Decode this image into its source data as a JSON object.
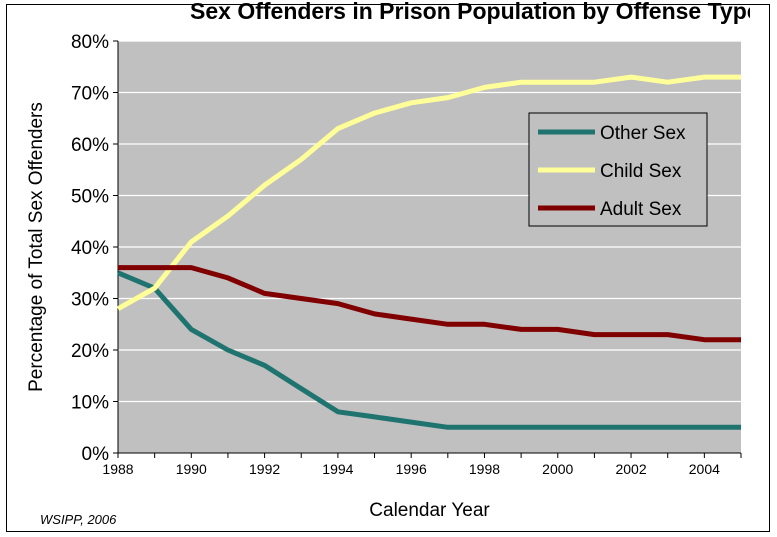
{
  "title": "Sex Offenders in Prison Population by Offense Type",
  "source_note": "WSIPP, 2006",
  "chart_data": {
    "type": "line",
    "title": "Sex Offenders in Prison Population by Offense Type",
    "xlabel": "Calendar Year",
    "ylabel": "Percentage of Total Sex Offenders",
    "xlim": [
      1988,
      2005
    ],
    "ylim": [
      0,
      80
    ],
    "x_ticks": [
      "1988",
      "1990",
      "1992",
      "1994",
      "1996",
      "1998",
      "2000",
      "2002",
      "2004"
    ],
    "y_ticks": [
      "0%",
      "10%",
      "20%",
      "30%",
      "40%",
      "50%",
      "60%",
      "70%",
      "80%"
    ],
    "grid": true,
    "legend_position": "right",
    "x": [
      1988,
      1989,
      1990,
      1991,
      1992,
      1993,
      1994,
      1995,
      1996,
      1997,
      1998,
      1999,
      2000,
      2001,
      2002,
      2003,
      2004,
      2005
    ],
    "series": [
      {
        "name": "Other Sex",
        "color": "#1f7470",
        "values": [
          35,
          32,
          24,
          20,
          17,
          12.5,
          8,
          7,
          6,
          5,
          5,
          5,
          5,
          5,
          5,
          5,
          5,
          5
        ]
      },
      {
        "name": "Child Sex",
        "color": "#ffff99",
        "values": [
          28,
          32,
          41,
          46,
          52,
          57,
          63,
          66,
          68,
          69,
          71,
          72,
          72,
          72,
          73,
          72,
          73,
          73
        ]
      },
      {
        "name": "Adult Sex",
        "color": "#800000",
        "values": [
          36,
          36,
          36,
          34,
          31,
          30,
          29,
          27,
          26,
          25,
          25,
          24,
          24,
          23,
          23,
          23,
          22,
          22
        ]
      }
    ]
  }
}
